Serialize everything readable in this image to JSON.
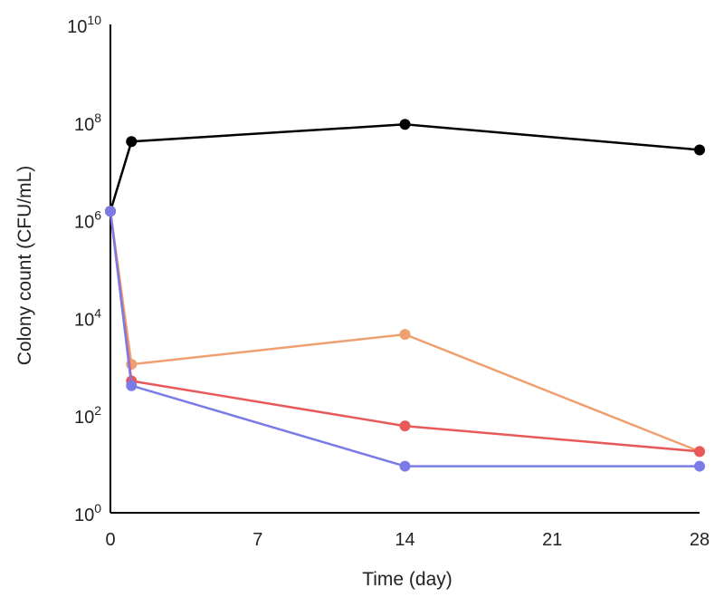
{
  "chart_data": {
    "type": "line",
    "title": "",
    "xlabel": "Time (day)",
    "ylabel": "Colony count (CFU/mL)",
    "xlim": [
      0,
      28
    ],
    "ylim": [
      1,
      10000000000
    ],
    "y_scale": "log",
    "x_ticks": [
      {
        "value": 0,
        "label": "0"
      },
      {
        "value": 7,
        "label": "7"
      },
      {
        "value": 14,
        "label": "14"
      },
      {
        "value": 21,
        "label": "21"
      },
      {
        "value": 28,
        "label": "28"
      }
    ],
    "y_ticks": [
      {
        "exponent": 0,
        "base": "10",
        "sup": "0"
      },
      {
        "exponent": 2,
        "base": "10",
        "sup": "2"
      },
      {
        "exponent": 4,
        "base": "10",
        "sup": "4"
      },
      {
        "exponent": 6,
        "base": "10",
        "sup": "6"
      },
      {
        "exponent": 8,
        "base": "10",
        "sup": "8"
      },
      {
        "exponent": 10,
        "base": "10",
        "sup": "10"
      }
    ],
    "grid": false,
    "legend": "none",
    "series": [
      {
        "color": "#000000",
        "x": [
          0,
          1,
          14,
          28
        ],
        "y": [
          1500000,
          40000000,
          90000000,
          27000000
        ]
      },
      {
        "color": "#f0a070",
        "x": [
          0,
          1,
          14,
          28
        ],
        "y": [
          1500000,
          1100,
          4500,
          18
        ]
      },
      {
        "color": "#e85a5a",
        "x": [
          0,
          1,
          14,
          28
        ],
        "y": [
          1500000,
          500,
          60,
          18
        ]
      },
      {
        "color": "#7b7be8",
        "x": [
          0,
          1,
          14,
          28
        ],
        "y": [
          1500000,
          400,
          9,
          9
        ]
      }
    ]
  }
}
